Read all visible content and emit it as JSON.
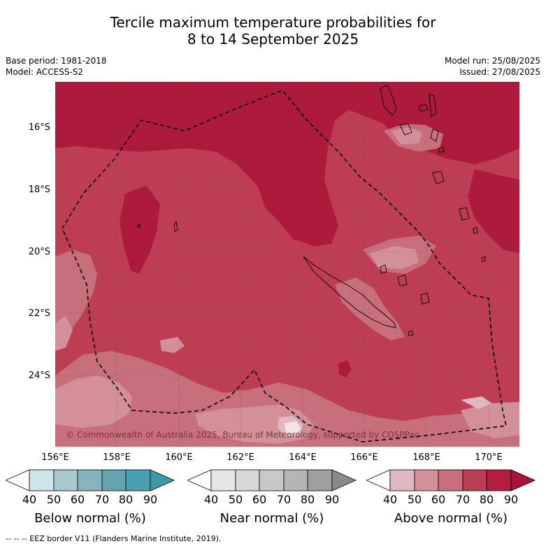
{
  "title": {
    "line1": "Tercile maximum temperature probabilities for",
    "line2": "8 to 14 September 2025"
  },
  "meta": {
    "base_period": "Base period: 1981-2018",
    "model": "Model: ACCESS-S2",
    "model_run": "Model run: 25/08/2025",
    "issued": "Issued: 27/08/2025"
  },
  "map": {
    "lat_labels": [
      "16°S",
      "18°S",
      "20°S",
      "22°S",
      "24°S"
    ],
    "lon_labels": [
      "156°E",
      "158°E",
      "160°E",
      "162°E",
      "164°E",
      "166°E",
      "168°E",
      "170°E"
    ],
    "copyright": "© Commonwealth of Australia 2025, Bureau of Meteorology, supported by COSPPac",
    "colors": {
      "above_50": "#e0b8c0",
      "above_60": "#d39099",
      "above_70": "#c86f7c",
      "above_80": "#bd3d53",
      "above_90": "#ad1a3b",
      "land_outline": "#000000",
      "eez_line": "#000000"
    }
  },
  "colorbars": [
    {
      "label": "Below normal (%)",
      "ticks": [
        "40",
        "50",
        "60",
        "70",
        "80",
        "90"
      ],
      "colors": [
        "#ffffff",
        "#cde4e9",
        "#a8c9cf",
        "#85b3be",
        "#66a3b1",
        "#4aa0b1",
        "#3c99ac"
      ]
    },
    {
      "label": "Near normal (%)",
      "ticks": [
        "40",
        "50",
        "60",
        "70",
        "80",
        "90"
      ],
      "colors": [
        "#ffffff",
        "#e6e6e6",
        "#d8d8d8",
        "#c8c8c8",
        "#b5b5b5",
        "#9e9e9e",
        "#8a8a8a"
      ]
    },
    {
      "label": "Above normal (%)",
      "ticks": [
        "40",
        "50",
        "60",
        "70",
        "80",
        "90"
      ],
      "colors": [
        "#ffffff",
        "#e0b8c0",
        "#d39099",
        "#c86f7c",
        "#bd3d53",
        "#b31e40",
        "#a8143a"
      ]
    }
  ],
  "footer": "-- -- -- EEZ border V11 (Flanders Marine Institute, 2019)."
}
